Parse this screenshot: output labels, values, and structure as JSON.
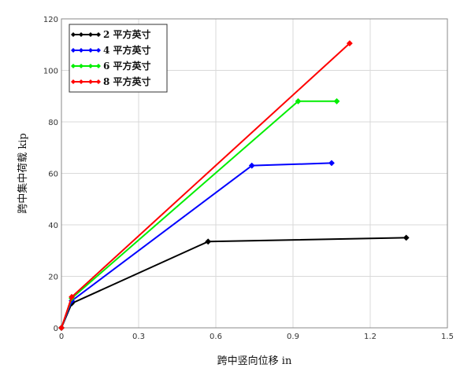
{
  "chart_data": {
    "type": "line",
    "title": "",
    "xlabel": "跨中竖向位移 in",
    "ylabel": "跨中集中荷载 kip",
    "xlim": [
      0,
      1.5
    ],
    "ylim": [
      0,
      120
    ],
    "xticks": [
      0,
      0.3,
      0.6,
      0.9,
      1.2,
      1.5
    ],
    "yticks": [
      0,
      20,
      40,
      60,
      80,
      100,
      120
    ],
    "xtick_labels": [
      "0",
      "0.3",
      "0.6",
      "0.9",
      "1.2",
      "1.5"
    ],
    "ytick_labels": [
      "0",
      "20",
      "40",
      "60",
      "80",
      "100",
      "120"
    ],
    "grid": true,
    "legend_position": "top-left",
    "series": [
      {
        "name": "2 平方英寸",
        "color": "#000000",
        "x": [
          0,
          0.04,
          0.57,
          1.34
        ],
        "y": [
          0,
          9.5,
          33.5,
          35
        ]
      },
      {
        "name": "4 平方英寸",
        "color": "#0000ff",
        "x": [
          0,
          0.04,
          0.74,
          1.05
        ],
        "y": [
          0,
          10.5,
          63,
          64
        ]
      },
      {
        "name": "6 平方英寸",
        "color": "#00ee00",
        "x": [
          0,
          0.04,
          0.92,
          1.07
        ],
        "y": [
          0,
          11.5,
          88,
          88
        ]
      },
      {
        "name": "8 平方英寸",
        "color": "#ff0000",
        "x": [
          0,
          0.04,
          1.12
        ],
        "y": [
          0,
          12,
          110.5
        ]
      }
    ]
  }
}
